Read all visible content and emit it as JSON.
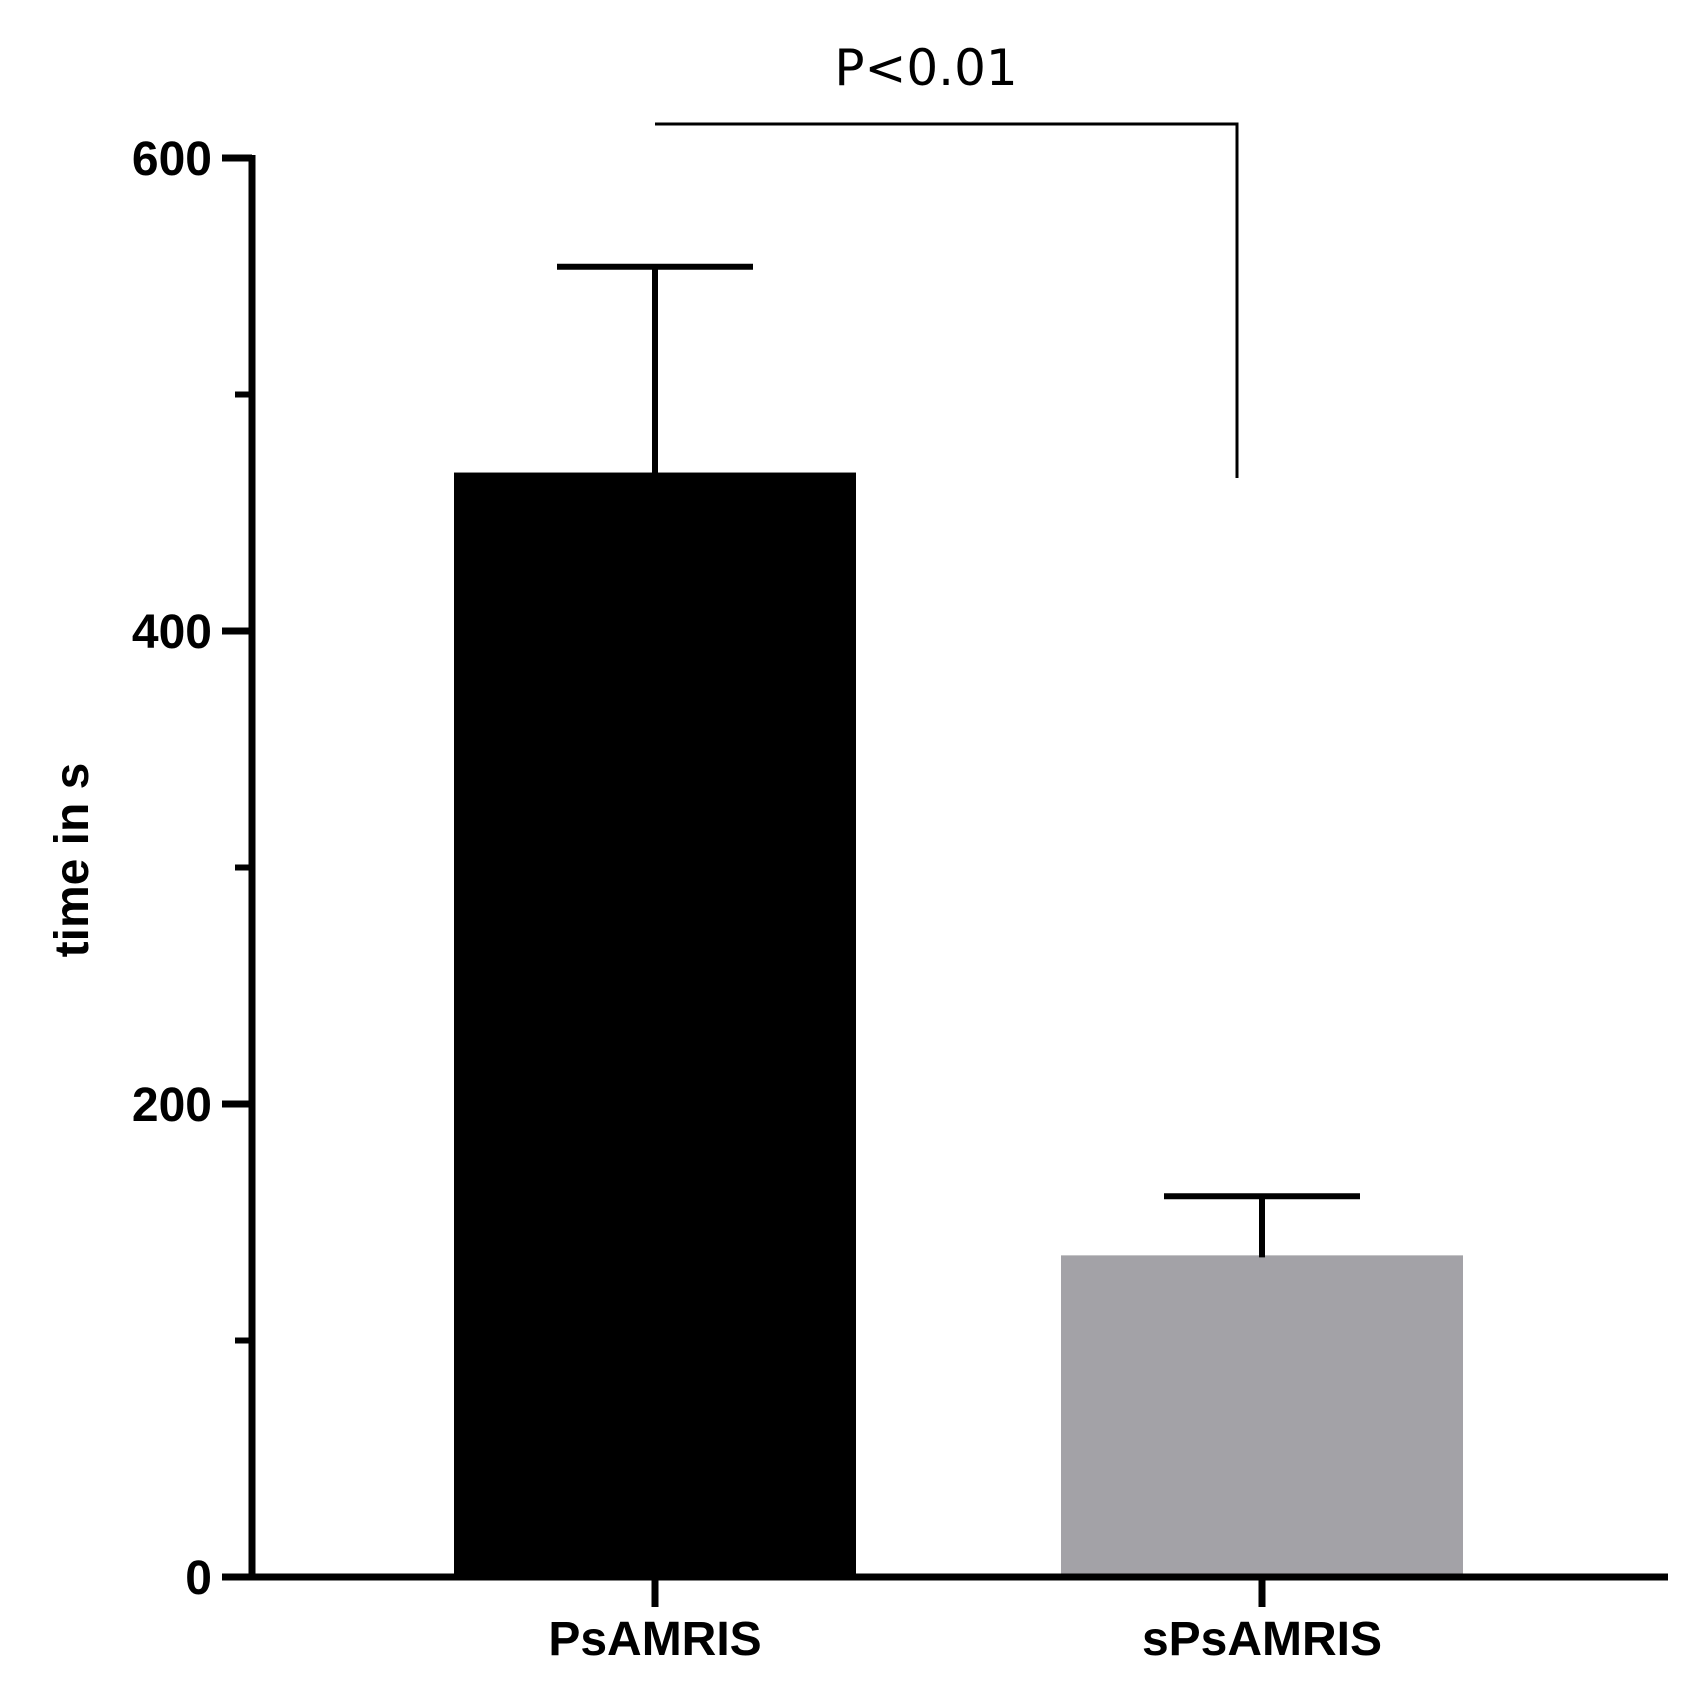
{
  "chart_data": {
    "type": "bar",
    "categories": [
      "PsAMRIS",
      "sPsAMRIS"
    ],
    "values": [
      467,
      136
    ],
    "error_upper": [
      554,
      161
    ],
    "colors": [
      "#000000",
      "#a3a2a7"
    ],
    "ylabel": "time in s",
    "xlabel": "",
    "ylim": [
      0,
      600
    ],
    "yticks": [
      0,
      200,
      400,
      600
    ],
    "y_minor_ticks": [
      100,
      300,
      500
    ],
    "yticklabels": [
      "0",
      "200",
      "400",
      "600"
    ],
    "grid": false,
    "annotation": {
      "text": "P<0.01",
      "from": "PsAMRIS",
      "to": "sPsAMRIS"
    }
  }
}
